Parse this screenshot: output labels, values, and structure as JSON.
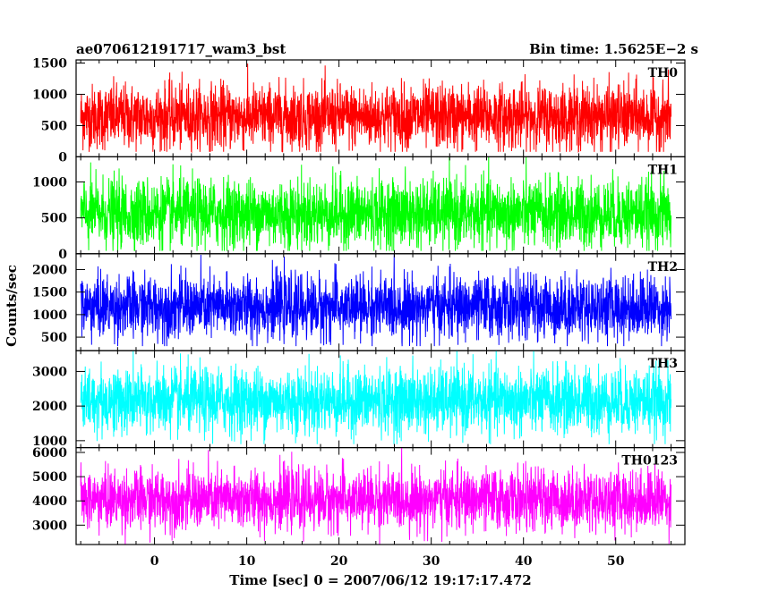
{
  "title_left": "ae070612191717_wam3_bst",
  "title_right": "Bin time: 1.5625E−2 s",
  "xlabel": "Time [sec] 0 = 2007/06/12 19:17:17.472",
  "ylabel": "Counts/sec",
  "chart_data": {
    "type": "line",
    "x_range": [
      -8,
      56
    ],
    "xlim": [
      -8.5,
      57.5
    ],
    "x_ticks": [
      0,
      10,
      20,
      30,
      40,
      50
    ],
    "bin_time": 0.015625,
    "panels": [
      {
        "name": "TH0",
        "color": "#ff0000",
        "ylim": [
          0,
          1550
        ],
        "y_ticks": [
          0,
          500,
          1000,
          1500
        ],
        "mean": 640,
        "std": 260,
        "min": 80,
        "max": 1550
      },
      {
        "name": "TH1",
        "color": "#00ff00",
        "ylim": [
          0,
          1350
        ],
        "y_ticks": [
          0,
          500,
          1000
        ],
        "mean": 560,
        "std": 240,
        "min": 40,
        "max": 1350
      },
      {
        "name": "TH2",
        "color": "#0000ff",
        "ylim": [
          200,
          2350
        ],
        "y_ticks": [
          500,
          1000,
          1500,
          2000
        ],
        "mean": 1170,
        "std": 350,
        "min": 300,
        "max": 2350
      },
      {
        "name": "TH3",
        "color": "#00ffff",
        "ylim": [
          800,
          3600
        ],
        "y_ticks": [
          1000,
          2000,
          3000
        ],
        "mean": 2150,
        "std": 480,
        "min": 900,
        "max": 3600
      },
      {
        "name": "TH0123",
        "color": "#ff00ff",
        "ylim": [
          2200,
          6200
        ],
        "y_ticks": [
          3000,
          4000,
          5000,
          6000
        ],
        "mean": 4050,
        "std": 620,
        "min": 2200,
        "max": 6200
      }
    ]
  }
}
